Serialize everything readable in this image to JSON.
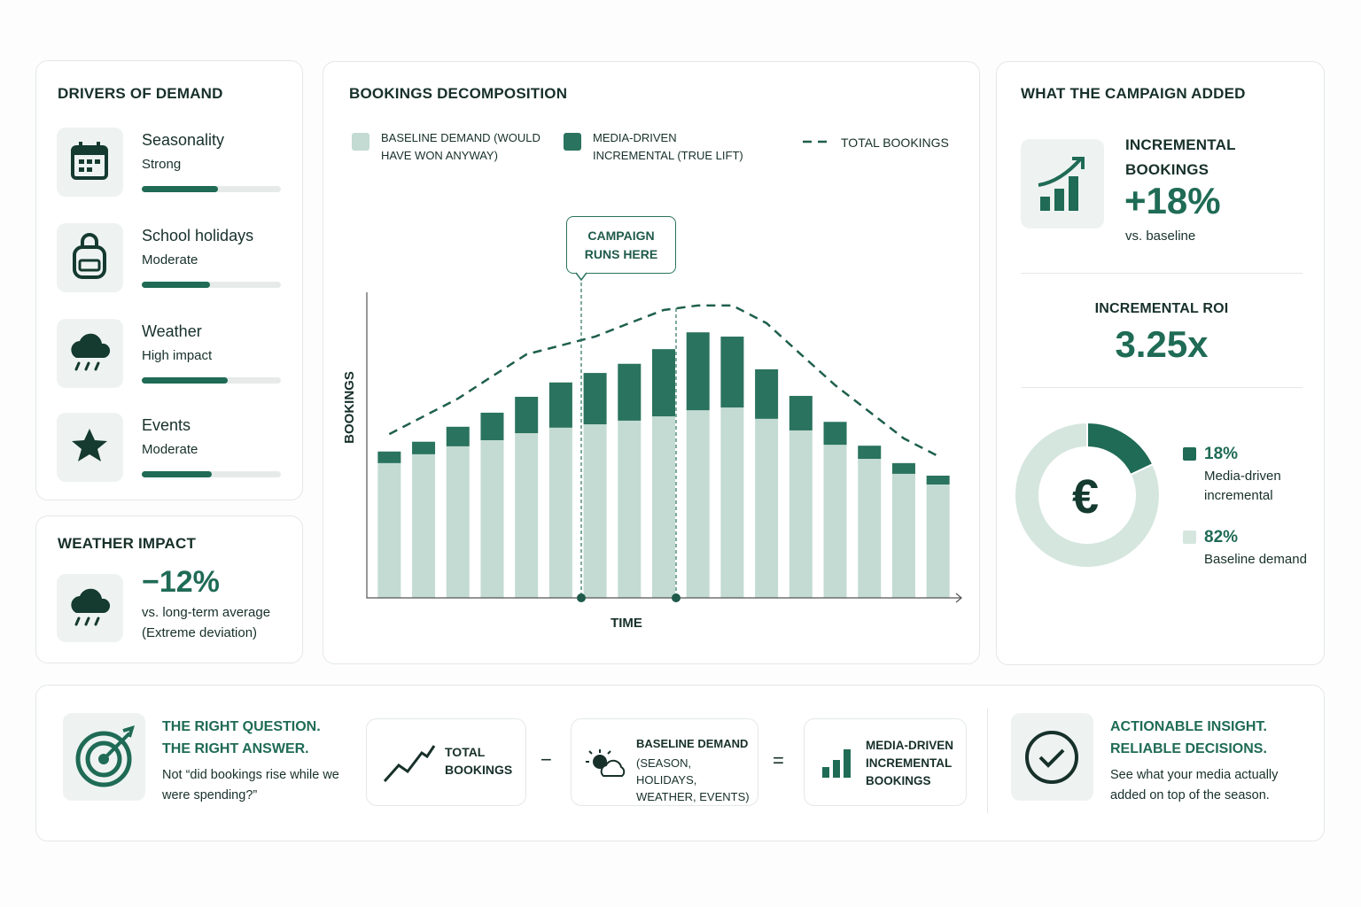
{
  "drivers": {
    "title": "DRIVERS OF DEMAND",
    "items": [
      {
        "name": "Seasonality",
        "level": "Strong",
        "score": 55
      },
      {
        "name": "School holidays",
        "level": "Moderate",
        "score": 49
      },
      {
        "name": "Weather",
        "level": "High impact",
        "score": 62
      },
      {
        "name": "Events",
        "level": "Moderate",
        "score": 50
      }
    ]
  },
  "weather_impact": {
    "title": "WEATHER IMPACT",
    "value": "−12%",
    "note": "vs. long-term average",
    "detail": "(Extreme deviation)"
  },
  "campaign": {
    "title": "WHAT THE CAMPAIGN ADDED",
    "kpi_label": "INCREMENTAL BOOKINGS",
    "kpi_value": "+18%",
    "kpi_note": "vs. baseline",
    "roi_label": "INCREMENTAL ROI",
    "roi_value": "3.25x"
  },
  "footer": {
    "question_title": [
      "THE RIGHT QUESTION.",
      "THE RIGHT ANSWER."
    ],
    "question_text": "Not “did bookings rise while we were spending?”",
    "equation": {
      "total": "TOTAL BOOKINGS",
      "minus": "−",
      "baseline": "BASELINE DEMAND",
      "baseline_detail": "(SEASON, HOLIDAYS, WEATHER, EVENTS)",
      "equals": "=",
      "result": "MEDIA-DRIVEN INCREMENTAL BOOKINGS"
    },
    "insight_title": [
      "ACTIONABLE INSIGHT.",
      "RELIABLE DECISIONS."
    ],
    "insight_text": "See what your media actually added on top of the season."
  },
  "chart_data": [
    {
      "type": "bar",
      "stacked": true,
      "title": "BOOKINGS DECOMPOSITION",
      "x_label": "TIME",
      "y_label": "BOOKINGS",
      "annotation": "CAMPAIGN RUNS HERE",
      "categories": [
        null,
        null,
        null,
        null,
        null,
        null,
        null,
        null,
        null,
        null,
        null,
        null,
        null,
        null,
        null,
        null,
        null
      ],
      "ylim": [
        0,
        100
      ],
      "grid": false,
      "series": [
        {
          "name": "BASELINE DEMAND (WOULD HAVE WON ANYWAY)",
          "color": "#c3dbd2",
          "values": [
            44.1,
            47,
            49.6,
            51.6,
            53.9,
            55.7,
            56.8,
            58,
            59.4,
            61.4,
            62.3,
            58.6,
            54.8,
            50.1,
            45.5,
            40.6,
            37.1
          ]
        },
        {
          "name": "MEDIA-DRIVEN INCREMENTAL (TRUE LIFT)",
          "color": "#2a735e",
          "values": [
            3.8,
            4.1,
            6.4,
            9,
            11.9,
            14.8,
            16.8,
            18.6,
            22,
            25.5,
            23.2,
            16.2,
            11.3,
            7.5,
            4.3,
            3.5,
            2.9
          ]
        },
        {
          "name": "TOTAL BOOKINGS",
          "type": "line",
          "dashed": true,
          "color": "#1e5f4d",
          "values": [
            53.6,
            59.4,
            65.2,
            72.5,
            79.7,
            82.6,
            85.5,
            89.9,
            94.2,
            95.7,
            95.7,
            89.9,
            79.7,
            69.6,
            60.9,
            52.2,
            46.4
          ]
        }
      ]
    },
    {
      "type": "donut",
      "center_label": "€",
      "categories": [
        "Media-driven incremental",
        "Baseline demand"
      ],
      "values": [
        18,
        82
      ],
      "value_labels": [
        "18%",
        "82%"
      ],
      "colors": [
        "#1f6b55",
        "#d5e6df"
      ]
    }
  ]
}
